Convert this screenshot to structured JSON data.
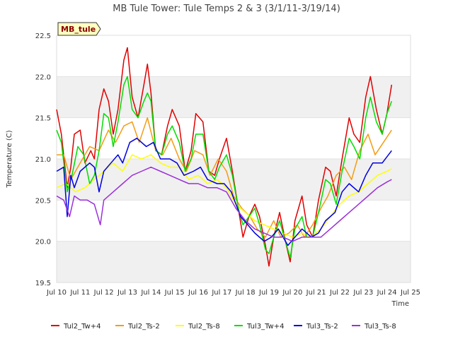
{
  "chart_data": {
    "type": "line",
    "title": "MB Tule Tower: Tule Temps 2 & 3 (3/1/11-3/19/14)",
    "xlabel": "Time",
    "ylabel": "Temperature (C)",
    "xlim": [
      10,
      25
    ],
    "ylim": [
      19.5,
      22.5
    ],
    "x_ticks": [
      10,
      11,
      12,
      13,
      14,
      15,
      16,
      17,
      18,
      19,
      20,
      21,
      22,
      23,
      24,
      25
    ],
    "x_tick_labels": [
      "Jul 10",
      "Jul 11",
      "Jul 12",
      "Jul 13",
      "Jul 14",
      "Jul 15",
      "Jul 16",
      "Jul 17",
      "Jul 18",
      "Jul 19",
      "Jul 20",
      "Jul 21",
      "Jul 22",
      "Jul 23",
      "Jul 24",
      "Jul 25"
    ],
    "y_ticks": [
      19.5,
      20.0,
      20.5,
      21.0,
      21.5,
      22.0,
      22.5
    ],
    "y_tick_labels": [
      "19.5",
      "20.0",
      "20.5",
      "21.0",
      "21.5",
      "22.0",
      "22.5"
    ],
    "badge": "MB_tule",
    "legend_position": "bottom",
    "series": [
      {
        "name": "Tul2_Tw+4",
        "color": "#e00000",
        "x": [
          10.0,
          10.2,
          10.45,
          10.6,
          10.75,
          11.0,
          11.2,
          11.45,
          11.6,
          11.8,
          12.0,
          12.2,
          12.4,
          12.6,
          12.85,
          13.0,
          13.2,
          13.45,
          13.7,
          13.85,
          14.0,
          14.2,
          14.45,
          14.7,
          14.9,
          15.2,
          15.45,
          15.7,
          15.9,
          16.2,
          16.45,
          16.7,
          16.9,
          17.2,
          17.45,
          17.7,
          17.9,
          18.15,
          18.4,
          18.6,
          18.85,
          19.0,
          19.2,
          19.45,
          19.7,
          19.9,
          20.1,
          20.4,
          20.6,
          20.85,
          21.1,
          21.4,
          21.6,
          21.85,
          22.1,
          22.4,
          22.6,
          22.85,
          23.1,
          23.3,
          23.55,
          23.8,
          24.0,
          24.2
        ],
        "y": [
          21.6,
          21.3,
          20.65,
          20.9,
          21.3,
          21.35,
          20.95,
          21.1,
          21.0,
          21.6,
          21.85,
          21.7,
          21.3,
          21.6,
          22.2,
          22.35,
          21.75,
          21.5,
          21.9,
          22.15,
          21.8,
          21.1,
          21.05,
          21.4,
          21.6,
          21.4,
          20.85,
          21.1,
          21.55,
          21.45,
          20.85,
          20.8,
          21.0,
          21.25,
          20.85,
          20.4,
          20.05,
          20.3,
          20.45,
          20.3,
          19.95,
          19.7,
          20.05,
          20.35,
          20.0,
          19.75,
          20.25,
          20.55,
          20.2,
          20.05,
          20.5,
          20.9,
          20.85,
          20.55,
          21.0,
          21.5,
          21.3,
          21.2,
          21.75,
          22.0,
          21.6,
          21.3,
          21.55,
          21.9
        ]
      },
      {
        "name": "Tul2_Ts-2",
        "color": "#f39c12",
        "x": [
          10.0,
          10.3,
          10.6,
          11.0,
          11.4,
          11.8,
          12.2,
          12.5,
          12.85,
          13.2,
          13.5,
          13.85,
          14.2,
          14.5,
          14.85,
          15.2,
          15.5,
          15.85,
          16.2,
          16.5,
          16.85,
          17.2,
          17.5,
          17.85,
          18.2,
          18.5,
          18.85,
          19.2,
          19.5,
          19.85,
          20.2,
          20.5,
          20.85,
          21.2,
          21.5,
          21.85,
          22.2,
          22.5,
          22.85,
          23.2,
          23.5,
          23.85,
          24.2
        ],
        "y": [
          21.05,
          21.05,
          20.75,
          20.95,
          21.15,
          21.1,
          21.35,
          21.2,
          21.4,
          21.45,
          21.2,
          21.5,
          21.1,
          21.05,
          21.25,
          21.0,
          20.85,
          21.1,
          21.05,
          20.8,
          21.0,
          20.85,
          20.55,
          20.4,
          20.3,
          20.15,
          20.05,
          20.25,
          20.05,
          20.1,
          20.2,
          20.05,
          20.2,
          20.4,
          20.55,
          20.8,
          20.9,
          20.75,
          21.1,
          21.3,
          21.05,
          21.2,
          21.35
        ]
      },
      {
        "name": "Tul2_Ts-8",
        "color": "#ffff00",
        "x": [
          10.0,
          10.4,
          10.8,
          11.2,
          11.6,
          12.0,
          12.4,
          12.8,
          13.2,
          13.6,
          14.0,
          14.4,
          14.8,
          15.2,
          15.6,
          16.0,
          16.4,
          16.8,
          17.2,
          17.6,
          18.0,
          18.4,
          18.8,
          19.2,
          19.6,
          20.0,
          20.4,
          20.8,
          21.2,
          21.6,
          22.0,
          22.4,
          22.8,
          23.2,
          23.6,
          24.0,
          24.2
        ],
        "y": [
          20.65,
          20.7,
          20.6,
          20.65,
          20.75,
          20.85,
          20.95,
          20.85,
          21.05,
          21.0,
          21.05,
          20.95,
          20.9,
          20.9,
          20.75,
          20.8,
          20.7,
          20.75,
          20.65,
          20.45,
          20.35,
          20.25,
          20.2,
          20.15,
          20.1,
          20.05,
          20.1,
          20.05,
          20.15,
          20.3,
          20.45,
          20.55,
          20.6,
          20.7,
          20.8,
          20.85,
          20.88
        ]
      },
      {
        "name": "Tul3_Tw+4",
        "color": "#00dd00",
        "x": [
          10.0,
          10.2,
          10.45,
          10.65,
          10.9,
          11.15,
          11.4,
          11.6,
          11.8,
          12.0,
          12.2,
          12.4,
          12.6,
          12.85,
          13.0,
          13.2,
          13.45,
          13.7,
          13.85,
          14.0,
          14.2,
          14.45,
          14.7,
          14.9,
          15.2,
          15.45,
          15.7,
          15.9,
          16.2,
          16.45,
          16.7,
          16.9,
          17.2,
          17.45,
          17.7,
          17.9,
          18.15,
          18.4,
          18.6,
          18.85,
          19.0,
          19.2,
          19.45,
          19.7,
          19.9,
          20.1,
          20.4,
          20.6,
          20.85,
          21.1,
          21.4,
          21.6,
          21.85,
          22.1,
          22.4,
          22.6,
          22.85,
          23.1,
          23.3,
          23.55,
          23.8,
          24.0,
          24.2
        ],
        "y": [
          21.35,
          21.2,
          20.6,
          20.8,
          21.15,
          21.05,
          20.7,
          20.8,
          21.1,
          21.55,
          21.5,
          21.15,
          21.45,
          21.9,
          22.0,
          21.6,
          21.5,
          21.7,
          21.8,
          21.7,
          21.1,
          21.05,
          21.3,
          21.4,
          21.2,
          20.85,
          21.0,
          21.3,
          21.3,
          20.85,
          20.75,
          20.9,
          21.05,
          20.8,
          20.4,
          20.2,
          20.3,
          20.4,
          20.2,
          19.9,
          19.85,
          20.05,
          20.25,
          20.0,
          19.8,
          20.15,
          20.3,
          20.05,
          20.05,
          20.35,
          20.75,
          20.7,
          20.45,
          20.85,
          21.25,
          21.15,
          21.0,
          21.5,
          21.75,
          21.45,
          21.3,
          21.55,
          21.7
        ]
      },
      {
        "name": "Tul3_Ts-2",
        "color": "#0000dd",
        "x": [
          10.0,
          10.3,
          10.45,
          10.6,
          10.75,
          11.0,
          11.4,
          11.6,
          11.8,
          12.0,
          12.3,
          12.6,
          12.8,
          13.1,
          13.4,
          13.8,
          14.1,
          14.4,
          14.8,
          15.1,
          15.4,
          15.8,
          16.1,
          16.4,
          16.8,
          17.1,
          17.4,
          17.8,
          18.1,
          18.4,
          18.8,
          19.1,
          19.4,
          19.8,
          20.1,
          20.4,
          20.8,
          21.1,
          21.4,
          21.8,
          22.1,
          22.4,
          22.8,
          23.1,
          23.4,
          23.8,
          24.2
        ],
        "y": [
          20.85,
          20.9,
          20.3,
          20.8,
          20.65,
          20.85,
          20.95,
          20.9,
          20.6,
          20.85,
          20.95,
          21.05,
          20.95,
          21.2,
          21.25,
          21.15,
          21.2,
          21.0,
          21.0,
          20.95,
          20.8,
          20.85,
          20.9,
          20.75,
          20.7,
          20.7,
          20.6,
          20.3,
          20.2,
          20.1,
          20.0,
          20.05,
          20.15,
          19.95,
          20.05,
          20.15,
          20.05,
          20.1,
          20.25,
          20.35,
          20.6,
          20.7,
          20.6,
          20.8,
          20.95,
          20.95,
          21.1
        ]
      },
      {
        "name": "Tul3_Ts-8",
        "color": "#9b30d9",
        "x": [
          10.0,
          10.3,
          10.55,
          10.75,
          11.0,
          11.3,
          11.6,
          11.85,
          12.0,
          12.4,
          12.8,
          13.2,
          13.6,
          14.0,
          14.4,
          14.8,
          15.2,
          15.6,
          16.0,
          16.4,
          16.8,
          17.2,
          17.6,
          18.0,
          18.4,
          18.8,
          19.2,
          19.6,
          20.0,
          20.4,
          20.8,
          21.2,
          21.6,
          22.0,
          22.4,
          22.8,
          23.2,
          23.6,
          24.0,
          24.2
        ],
        "y": [
          20.55,
          20.5,
          20.3,
          20.55,
          20.5,
          20.5,
          20.45,
          20.2,
          20.5,
          20.6,
          20.7,
          20.8,
          20.85,
          20.9,
          20.85,
          20.8,
          20.75,
          20.7,
          20.7,
          20.65,
          20.65,
          20.6,
          20.4,
          20.25,
          20.15,
          20.1,
          20.05,
          20.05,
          20.0,
          20.05,
          20.05,
          20.05,
          20.15,
          20.25,
          20.35,
          20.45,
          20.55,
          20.65,
          20.72,
          20.75
        ]
      }
    ]
  }
}
